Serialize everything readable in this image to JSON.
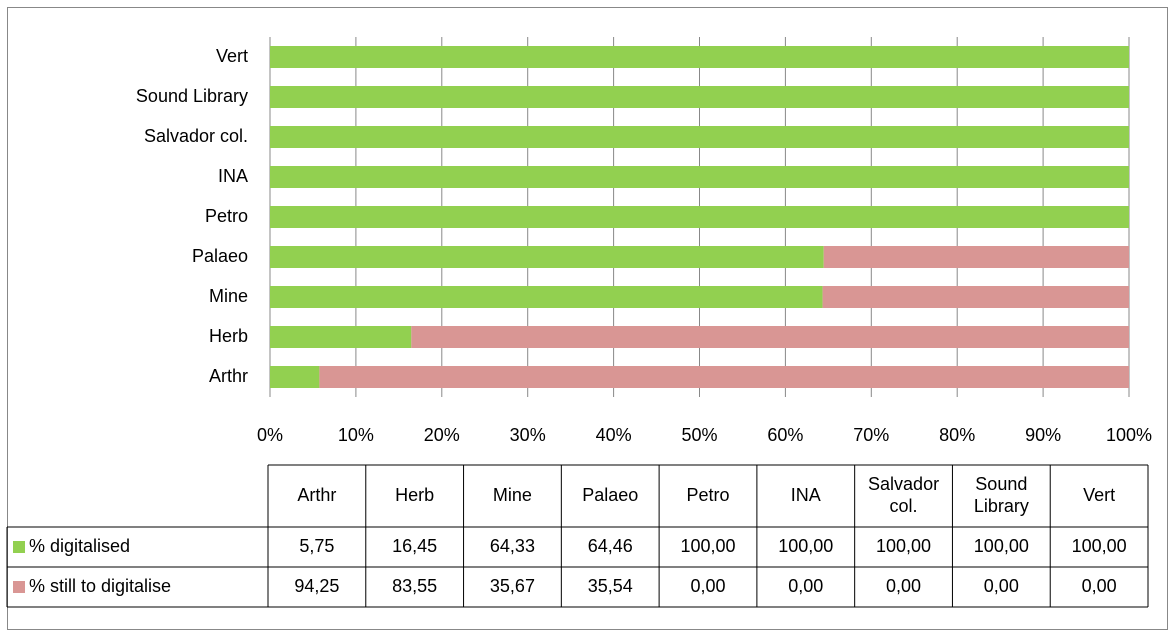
{
  "chart_data": {
    "type": "bar",
    "orientation": "horizontal",
    "stacked": true,
    "categories": [
      "Arthr",
      "Herb",
      "Mine",
      "Palaeo",
      "Petro",
      "INA",
      "Salvador col.",
      "Sound Library",
      "Vert"
    ],
    "series": [
      {
        "name": "% digitalised",
        "color": "#92d050",
        "values": [
          5.75,
          16.45,
          64.33,
          64.46,
          100,
          100,
          100,
          100,
          100
        ],
        "value_labels": [
          "5,75",
          "16,45",
          "64,33",
          "64,46",
          "100,00",
          "100,00",
          "100,00",
          "100,00",
          "100,00"
        ]
      },
      {
        "name": "% still to digitalise",
        "color": "#d99694",
        "values": [
          94.25,
          83.55,
          35.67,
          35.54,
          0,
          0,
          0,
          0,
          0
        ],
        "value_labels": [
          "94,25",
          "83,55",
          "35,67",
          "35,54",
          "0,00",
          "0,00",
          "0,00",
          "0,00",
          "0,00"
        ]
      }
    ],
    "xlim": [
      0,
      100
    ],
    "xticks": [
      {
        "value": 0,
        "label": "0%"
      },
      {
        "value": 10,
        "label": "10%"
      },
      {
        "value": 20,
        "label": "20%"
      },
      {
        "value": 30,
        "label": "30%"
      },
      {
        "value": 40,
        "label": "40%"
      },
      {
        "value": 50,
        "label": "50%"
      },
      {
        "value": 60,
        "label": "60%"
      },
      {
        "value": 70,
        "label": "70%"
      },
      {
        "value": 80,
        "label": "80%"
      },
      {
        "value": 90,
        "label": "90%"
      },
      {
        "value": 100,
        "label": "100%"
      }
    ],
    "grid": true,
    "data_table": true
  }
}
